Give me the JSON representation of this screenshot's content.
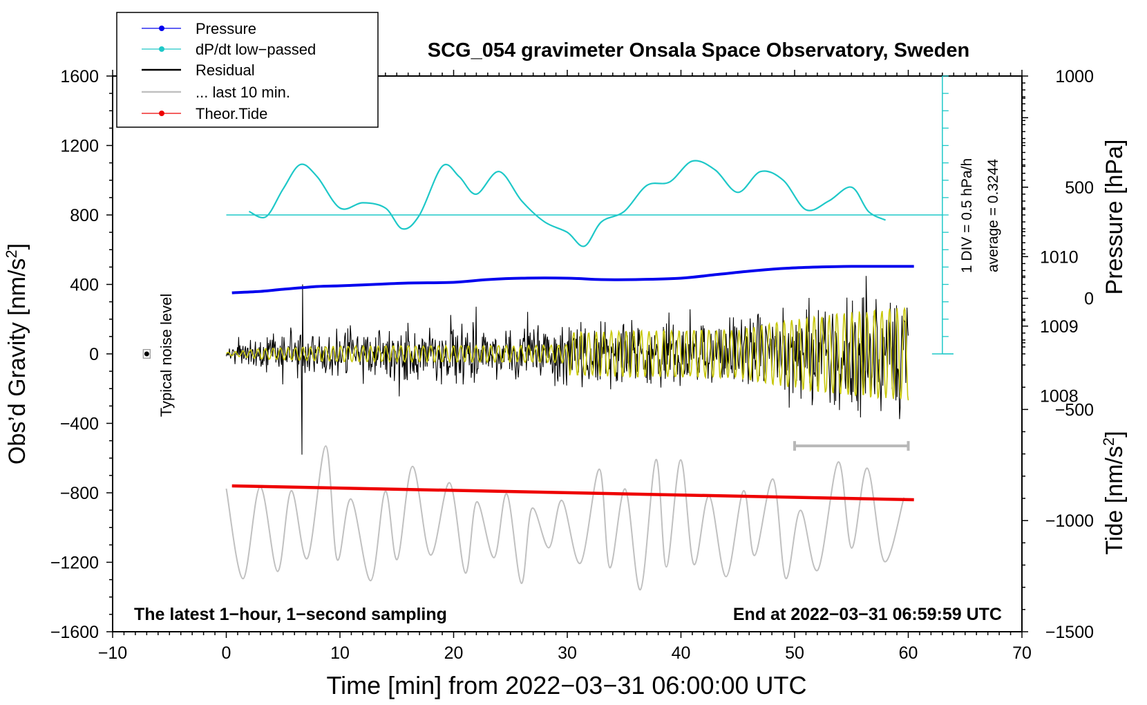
{
  "chart_data": {
    "type": "line",
    "title": "SCG_054 gravimeter Onsala Space Observatory, Sweden",
    "xlabel": "Time [min] from 2022−03−31 06:00:00 UTC",
    "ylabel": "Obs’d Gravity [nm/s",
    "ylabel_sup": "2",
    "ylabel_end": "]",
    "ylabel_right_pressure": "Pressure [hPa]",
    "ylabel_right_tide": "Tide [nm/s",
    "ylabel_right_tide_sup": "2",
    "ylabel_right_tide_end": "]",
    "xlim": [
      -10,
      70
    ],
    "ylim": [
      -1600,
      1600
    ],
    "x_ticks": [
      "−10",
      "0",
      "10",
      "20",
      "30",
      "40",
      "50",
      "60",
      "70"
    ],
    "y_ticks": [
      "1600",
      "1200",
      "800",
      "400",
      "0",
      "−400",
      "−800",
      "−1200",
      "−1600"
    ],
    "pressure_ticks": [
      "1010",
      "1009",
      "1008"
    ],
    "tide_ticks": [
      "1000",
      "500",
      "0",
      "−500",
      "−1000",
      "−1500"
    ],
    "pressure_lim": [
      1004.6,
      1012.6
    ],
    "tide_lim": [
      -1500,
      1000
    ],
    "legend": {
      "position": "top-left",
      "entries": [
        "Pressure",
        "dP/dt low−passed",
        "Residual",
        "... last 10 min.",
        "Theor.Tide"
      ]
    },
    "annotations": {
      "noise": "Typical noise level",
      "bottom_left": "The latest 1−hour, 1−second sampling",
      "bottom_right": "End at 2022−03−31 06:59:59 UTC",
      "dpdt_scale": "1 DIV = 0.5 hPa/h",
      "dpdt_average": "average = 0.3244"
    },
    "colors": {
      "pressure": "#0000ee",
      "dpdt": "#1ec8c8",
      "residual": "#000000",
      "residual_filtered": "#c8c80a",
      "last10": "#c0c0c0",
      "tide": "#ee0000"
    },
    "series": [
      {
        "name": "Pressure",
        "unit": "hPa",
        "x": [
          0.5,
          3,
          5,
          8,
          10,
          13,
          16,
          20,
          23,
          26,
          30,
          33,
          36,
          40,
          43,
          46,
          49,
          52,
          55,
          58,
          60.5
        ],
        "values": [
          1009.48,
          1009.5,
          1009.53,
          1009.57,
          1009.58,
          1009.6,
          1009.62,
          1009.63,
          1009.67,
          1009.69,
          1009.69,
          1009.67,
          1009.67,
          1009.69,
          1009.74,
          1009.79,
          1009.83,
          1009.85,
          1009.86,
          1009.86,
          1009.86
        ]
      },
      {
        "name": "dP/dt low−passed",
        "unit": "nm/s2 axis",
        "x": [
          2,
          3.5,
          5,
          6.5,
          8,
          10,
          12,
          14,
          15.5,
          17,
          19,
          20.5,
          22,
          24,
          26,
          28,
          30,
          31.5,
          33,
          35,
          37,
          39,
          41,
          43,
          45,
          47,
          49,
          51,
          53,
          55,
          56.5,
          58
        ],
        "values": [
          820,
          790,
          950,
          1090,
          1020,
          840,
          870,
          840,
          720,
          800,
          1080,
          1020,
          920,
          1050,
          880,
          760,
          700,
          620,
          760,
          820,
          970,
          990,
          1110,
          1060,
          930,
          1050,
          1000,
          830,
          880,
          960,
          820,
          770
        ]
      },
      {
        "name": "dP/dt zero line",
        "x": [
          0,
          63
        ],
        "values": [
          800,
          800
        ]
      },
      {
        "name": "Residual",
        "x_range": [
          0,
          60
        ],
        "envelope": [
          [
            0,
            30
          ],
          [
            3,
            120
          ],
          [
            10,
            180
          ],
          [
            25,
            190
          ],
          [
            35,
            220
          ],
          [
            45,
            230
          ],
          [
            50,
            330
          ],
          [
            55,
            400
          ],
          [
            60,
            450
          ]
        ]
      },
      {
        "name": "... last 10 min.",
        "x_range": [
          0,
          60
        ],
        "range": [
          -1400,
          -370
        ]
      },
      {
        "name": "Theor.Tide",
        "unit": "nm/s2",
        "x": [
          0.5,
          60.5
        ],
        "values": [
          -760,
          -840
        ]
      }
    ],
    "noise_bar": {
      "x": -7,
      "y": 0,
      "err": 25
    },
    "last10_bracket": {
      "x": [
        50,
        60
      ],
      "y": -530
    },
    "dpdt_axis": {
      "x": 63,
      "y_range": [
        0,
        1600
      ],
      "divisions": 16
    }
  }
}
